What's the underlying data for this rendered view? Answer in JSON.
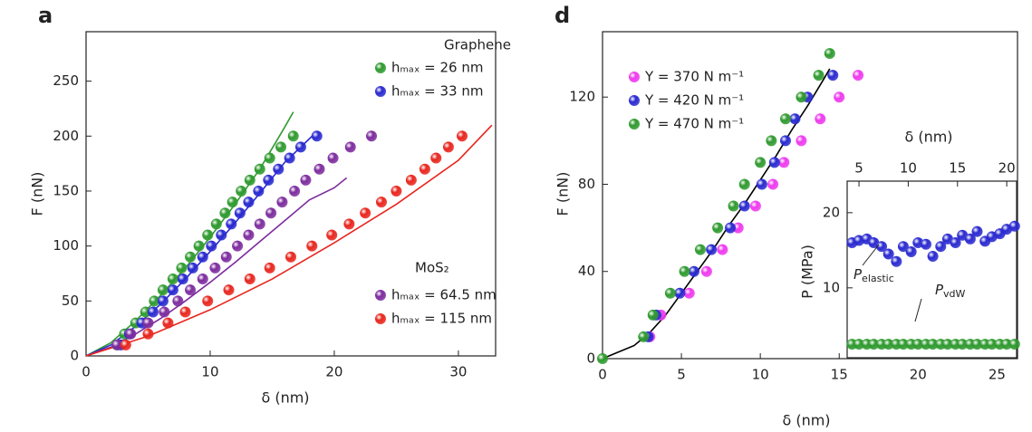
{
  "chart_data": [
    {
      "type": "scatter",
      "panel_label": "a",
      "x_label": "δ (nm)",
      "y_label": "F (nN)",
      "xlim": [
        0,
        33
      ],
      "ylim": [
        0,
        295
      ],
      "xticks": [
        0,
        10,
        20,
        30
      ],
      "yticks": [
        0,
        50,
        100,
        150,
        200,
        250
      ],
      "legend_titles": [
        "Graphene",
        "MoS₂"
      ],
      "series": [
        {
          "name": "hₘₐₓ = 26 nm",
          "color": "#2f9a2f",
          "x": [
            2.5,
            3.1,
            4,
            4.8,
            5.5,
            6.2,
            7,
            7.7,
            8.4,
            9.1,
            9.8,
            10.5,
            11.2,
            11.8,
            12.5,
            13.2,
            14,
            14.8,
            15.7,
            16.7
          ],
          "values": [
            10,
            20,
            30,
            40,
            50,
            60,
            70,
            80,
            90,
            100,
            110,
            120,
            130,
            140,
            150,
            160,
            170,
            180,
            190,
            200
          ],
          "fit": {
            "x": [
              0,
              2,
              4,
              6,
              8,
              10,
              12,
              14,
              16,
              16.7
            ],
            "y": [
              0,
              12,
              32,
              55,
              80,
              108,
              138,
              170,
              208,
              222
            ]
          }
        },
        {
          "name": "hₘₐₓ = 33 nm",
          "color": "#2a2ad0",
          "x": [
            2.8,
            3.5,
            4.5,
            5.4,
            6.2,
            7,
            7.8,
            8.6,
            9.4,
            10.1,
            10.9,
            11.7,
            12.4,
            13.1,
            13.9,
            14.7,
            15.5,
            16.4,
            17.3,
            18.6
          ],
          "values": [
            10,
            20,
            30,
            40,
            50,
            60,
            70,
            80,
            90,
            100,
            110,
            120,
            130,
            140,
            150,
            160,
            170,
            180,
            190,
            200
          ],
          "fit": {
            "x": [
              0,
              2,
              4,
              6,
              8,
              10,
              12,
              14,
              16,
              18.4
            ],
            "y": [
              0,
              10,
              27,
              47,
              70,
              95,
              121,
              148,
              176,
              202
            ]
          }
        },
        {
          "name": "hₘₐₓ = 64.5 nm",
          "color": "#7d2c9e",
          "x": [
            2.5,
            3.6,
            5,
            6.3,
            7.4,
            8.4,
            9.4,
            10.4,
            11.3,
            12.2,
            13.1,
            14,
            14.9,
            15.8,
            16.8,
            17.7,
            18.8,
            19.9,
            21.3,
            23
          ],
          "values": [
            10,
            20,
            30,
            40,
            50,
            60,
            70,
            80,
            90,
            100,
            110,
            120,
            130,
            140,
            150,
            160,
            170,
            180,
            190,
            200
          ],
          "fit": {
            "x": [
              0,
              2,
              4,
              6,
              8,
              10,
              12,
              14,
              16,
              18,
              20,
              21
            ],
            "y": [
              0,
              8,
              20,
              34,
              50,
              67,
              85,
              104,
              123,
              142,
              153,
              162
            ]
          }
        },
        {
          "name": "hₘₐₓ = 115 nm",
          "color": "#e8261e",
          "x": [
            3.2,
            5,
            6.6,
            8,
            9.8,
            11.5,
            13.2,
            14.8,
            16.5,
            18.2,
            19.8,
            21.2,
            22.5,
            23.8,
            25,
            26.2,
            27.3,
            28.2,
            29.2,
            30.3
          ],
          "values": [
            10,
            20,
            30,
            40,
            50,
            60,
            70,
            80,
            90,
            100,
            110,
            120,
            130,
            140,
            150,
            160,
            170,
            180,
            190,
            200
          ],
          "fit": {
            "x": [
              0,
              5,
              10,
              15,
              20,
              25,
              30,
              32.7
            ],
            "y": [
              0,
              18,
              42,
              70,
              103,
              138,
              178,
              210
            ]
          }
        }
      ]
    },
    {
      "type": "scatter",
      "panel_label": "d",
      "x_label": "δ (nm)",
      "y_label": "F (nN)",
      "xlim": [
        0,
        26.3
      ],
      "ylim": [
        0,
        150
      ],
      "xticks": [
        0,
        5,
        10,
        15,
        20,
        25
      ],
      "yticks": [
        0,
        40,
        80,
        120
      ],
      "series": [
        {
          "name": "Y = 370 N m⁻¹",
          "color": "#ee3aee",
          "x": [
            3,
            3.7,
            5.5,
            6.6,
            7.6,
            8.6,
            9.7,
            10.8,
            11.5,
            12.6,
            13.8,
            15,
            16.2
          ],
          "values": [
            10,
            20,
            30,
            40,
            50,
            60,
            70,
            80,
            90,
            100,
            110,
            120,
            130
          ]
        },
        {
          "name": "Y = 420 N m⁻¹",
          "color": "#2a2ad0",
          "x": [
            2.9,
            3.4,
            4.9,
            5.8,
            6.9,
            8.1,
            9,
            10.1,
            10.9,
            11.6,
            12.2,
            13,
            14.6
          ],
          "values": [
            10,
            20,
            30,
            40,
            50,
            60,
            70,
            80,
            90,
            100,
            110,
            120,
            130
          ]
        },
        {
          "name": "Y = 470 N m⁻¹",
          "color": "#2f9a2f",
          "x": [
            0,
            2.6,
            3.2,
            4.3,
            5.2,
            6.2,
            7.3,
            8.3,
            9,
            10,
            10.7,
            11.6,
            12.6,
            13.7,
            14.4
          ],
          "values": [
            0,
            10,
            20,
            30,
            40,
            50,
            60,
            70,
            80,
            90,
            100,
            110,
            120,
            130,
            140
          ]
        }
      ],
      "fit": {
        "color": "#000000",
        "x": [
          0,
          1,
          2,
          3,
          4,
          5,
          6,
          7,
          8,
          9,
          10,
          11,
          12,
          13,
          14,
          14.4
        ],
        "y": [
          0,
          3,
          6,
          12,
          20,
          30,
          40,
          50,
          61,
          71,
          82,
          93,
          105,
          116,
          128,
          133
        ]
      }
    },
    {
      "type": "scatter",
      "x_label": "δ (nm)",
      "y_label": "P (MPa)",
      "x_axis_position": "top",
      "xlim": [
        3.8,
        21
      ],
      "ylim": [
        0.7,
        24.2
      ],
      "xticks": [
        5,
        10,
        15,
        20
      ],
      "yticks": [
        10,
        20
      ],
      "annotations": [
        {
          "text": "P",
          "sub": "elastic"
        },
        {
          "text": "P",
          "sub": "vdW"
        }
      ],
      "series": [
        {
          "color": "#2a2ad0",
          "x": [
            4.3,
            5,
            5.8,
            6.5,
            7.3,
            8,
            8.8,
            9.5,
            10.3,
            11,
            11.8,
            12.5,
            13.3,
            14,
            14.8,
            15.5,
            16.3,
            17,
            17.8,
            18.5,
            19.3,
            20,
            20.8
          ],
          "values": [
            16,
            16.3,
            16.5,
            16,
            15.5,
            14.5,
            13.5,
            15.5,
            14.8,
            16,
            15.8,
            14.2,
            15.5,
            16.5,
            16,
            17,
            16.5,
            17.5,
            16.2,
            16.8,
            17.2,
            17.8,
            18.2
          ]
        },
        {
          "color": "#2f9a2f",
          "x": [
            4.3,
            5,
            5.8,
            6.5,
            7.3,
            8,
            8.8,
            9.5,
            10.3,
            11,
            11.8,
            12.5,
            13.3,
            14,
            14.8,
            15.5,
            16.3,
            17,
            17.8,
            18.5,
            19.3,
            20,
            20.8
          ],
          "values": [
            2.5,
            2.5,
            2.5,
            2.5,
            2.5,
            2.5,
            2.5,
            2.5,
            2.5,
            2.5,
            2.5,
            2.5,
            2.5,
            2.5,
            2.5,
            2.5,
            2.5,
            2.5,
            2.5,
            2.5,
            2.5,
            2.5,
            2.5
          ]
        }
      ]
    }
  ]
}
